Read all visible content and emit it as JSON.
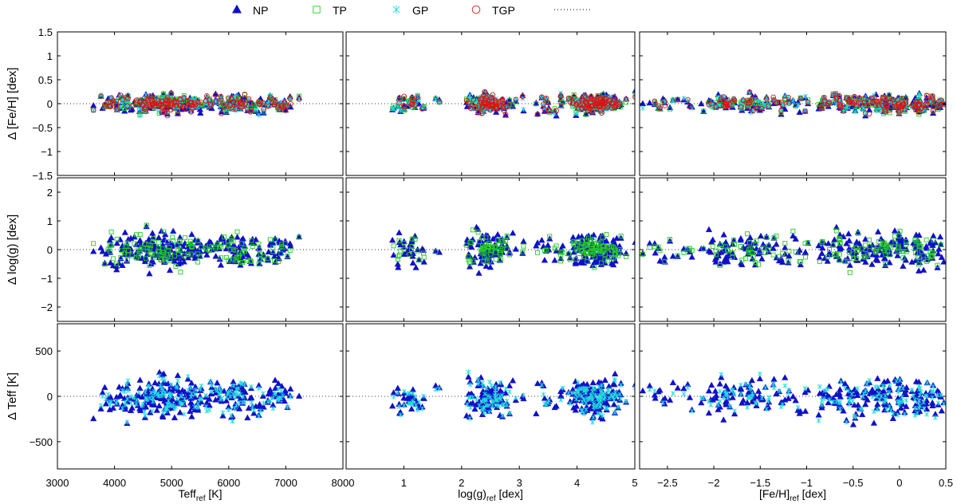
{
  "chart_data": {
    "type": "scatter",
    "title": "",
    "legend": {
      "placement": "top",
      "entries": [
        {
          "name": "NP",
          "marker": "triangle",
          "color": "#1010c8"
        },
        {
          "name": "TP",
          "marker": "square",
          "color": "#22cc22"
        },
        {
          "name": "GP",
          "marker": "x",
          "color": "#22dddd"
        },
        {
          "name": "TGP",
          "marker": "circle",
          "color": "#dd1111"
        },
        {
          "name": "",
          "marker": "dotted-line",
          "color": "#000000"
        }
      ]
    },
    "columns": [
      {
        "id": "teff",
        "xlabel_main": "Teff",
        "xlabel_sub": "ref",
        "xlabel_unit": " [K]",
        "xlim": [
          3000,
          8000
        ],
        "ticks": [
          {
            "v": 3000,
            "l": "3000"
          },
          {
            "v": 4000,
            "l": "4000"
          },
          {
            "v": 5000,
            "l": "5000"
          },
          {
            "v": 6000,
            "l": "6000"
          },
          {
            "v": 7000,
            "l": "7000"
          },
          {
            "v": 8000,
            "l": "8000"
          }
        ]
      },
      {
        "id": "logg",
        "xlabel_main": "log(g)",
        "xlabel_sub": "ref",
        "xlabel_unit": " [dex]",
        "xlim": [
          0,
          5
        ],
        "ticks": [
          {
            "v": 1,
            "l": "1"
          },
          {
            "v": 2,
            "l": "2"
          },
          {
            "v": 3,
            "l": "3"
          },
          {
            "v": 4,
            "l": "4"
          },
          {
            "v": 5,
            "l": "5"
          }
        ]
      },
      {
        "id": "feh",
        "xlabel_main": "[Fe/H]",
        "xlabel_sub": "ref",
        "xlabel_unit": " [dex]",
        "xlim": [
          -2.8,
          0.5
        ],
        "ticks": [
          {
            "v": -2.5,
            "l": "−2.5"
          },
          {
            "v": -2,
            "l": "−2"
          },
          {
            "v": -1.5,
            "l": "−1.5"
          },
          {
            "v": -1,
            "l": "−1"
          },
          {
            "v": -0.5,
            "l": "−0.5"
          },
          {
            "v": 0,
            "l": "0"
          },
          {
            "v": 0.5,
            "l": "0.5"
          }
        ]
      }
    ],
    "rows": [
      {
        "id": "dfeh",
        "ylabel": "Δ [Fe/H] [dex]",
        "ylim": [
          -1.5,
          1.5
        ],
        "series": [
          "NP",
          "TP",
          "GP",
          "TGP"
        ],
        "ticks": [
          {
            "v": -1.5,
            "l": "−1.5"
          },
          {
            "v": -1,
            "l": "−1"
          },
          {
            "v": -0.5,
            "l": "−0.5"
          },
          {
            "v": 0,
            "l": "0"
          },
          {
            "v": 0.5,
            "l": "0.5"
          },
          {
            "v": 1,
            "l": "1"
          },
          {
            "v": 1.5,
            "l": "1.5"
          }
        ]
      },
      {
        "id": "dlogg",
        "ylabel": "Δ log(g) [dex]",
        "ylim": [
          -2.5,
          2.5
        ],
        "series": [
          "NP",
          "TP"
        ],
        "ticks": [
          {
            "v": -2,
            "l": "−2"
          },
          {
            "v": -1,
            "l": "−1"
          },
          {
            "v": 0,
            "l": "0"
          },
          {
            "v": 1,
            "l": "1"
          },
          {
            "v": 2,
            "l": "2"
          }
        ]
      },
      {
        "id": "dteff",
        "ylabel": "Δ Teff [K]",
        "ylim": [
          -800,
          800
        ],
        "series": [
          "NP",
          "GP"
        ],
        "ticks": [
          {
            "v": -500,
            "l": "−500"
          },
          {
            "v": 0,
            "l": "0"
          },
          {
            "v": 500,
            "l": "500"
          }
        ]
      }
    ],
    "sample_stars": [
      {
        "teff": 4000,
        "logg": 1.0,
        "feh": -0.6
      },
      {
        "teff": 4300,
        "logg": 1.2,
        "feh": -2.6
      },
      {
        "teff": 4450,
        "logg": 2.4,
        "feh": -1.2
      },
      {
        "teff": 4600,
        "logg": 2.5,
        "feh": -0.4
      },
      {
        "teff": 4700,
        "logg": 2.8,
        "feh": -0.1
      },
      {
        "teff": 4800,
        "logg": 2.3,
        "feh": -1.5
      },
      {
        "teff": 4900,
        "logg": 2.6,
        "feh": 0.1
      },
      {
        "teff": 5000,
        "logg": 3.5,
        "feh": -0.3
      },
      {
        "teff": 5200,
        "logg": 4.4,
        "feh": -2.0
      },
      {
        "teff": 5500,
        "logg": 4.1,
        "feh": -0.8
      },
      {
        "teff": 5800,
        "logg": 4.3,
        "feh": 0.0
      },
      {
        "teff": 6000,
        "logg": 4.0,
        "feh": -0.5
      },
      {
        "teff": 6200,
        "logg": 4.2,
        "feh": 0.2
      },
      {
        "teff": 6500,
        "logg": 4.3,
        "feh": 0.35
      },
      {
        "teff": 6900,
        "logg": 4.6,
        "feh": -1.8
      }
    ]
  }
}
